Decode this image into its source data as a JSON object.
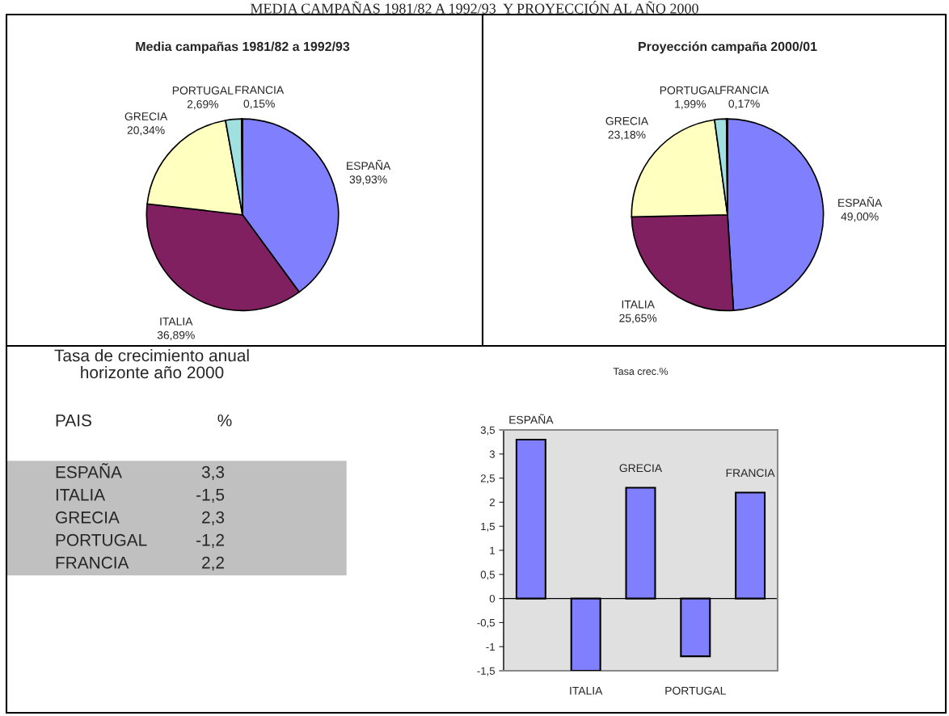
{
  "chart_data": [
    {
      "type": "pie",
      "title": "Media campañas 1981/82 a 1992/93",
      "annotations": [
        "MEDIA CAMPAÑAS 1981/82 A 1992/93  Y PROYECCIÓN AL AÑO 2000"
      ],
      "categories": [
        "ESPAÑA",
        "ITALIA",
        "GRECIA",
        "PORTUGAL",
        "FRANCIA"
      ],
      "values": [
        39.93,
        36.89,
        20.34,
        2.69,
        0.15
      ],
      "value_labels": [
        "39,93%",
        "36,89%",
        "20,34%",
        "2,69%",
        "0,15%"
      ],
      "colors": [
        "#8080ff",
        "#802060",
        "#ffffc0",
        "#a0e0e0",
        "#404040"
      ]
    },
    {
      "type": "pie",
      "title": "Proyección campaña 2000/01",
      "categories": [
        "ESPAÑA",
        "ITALIA",
        "GRECIA",
        "PORTUGAL",
        "FRANCIA"
      ],
      "values": [
        49.0,
        25.65,
        23.18,
        1.99,
        0.17
      ],
      "value_labels": [
        "49,00%",
        "25,65%",
        "23,18%",
        "1,99%",
        "0,17%"
      ],
      "colors": [
        "#8080ff",
        "#802060",
        "#ffffc0",
        "#a0e0e0",
        "#404040"
      ]
    },
    {
      "type": "other",
      "title": "Tasa de crecimiento anual\nhorizonte año 2000",
      "xlabel": "PAIS",
      "ylabel": "%",
      "categories": [
        "ESPAÑA",
        "ITALIA",
        "GRECIA",
        "PORTUGAL",
        "FRANCIA"
      ],
      "value_labels": [
        "3,3",
        "-1,5",
        "2,3",
        "-1,2",
        "2,2"
      ]
    },
    {
      "type": "bar",
      "title": "Tasa crec.%",
      "categories": [
        "ESPAÑA",
        "ITALIA",
        "GRECIA",
        "PORTUGAL",
        "FRANCIA"
      ],
      "values": [
        3.3,
        -1.5,
        2.3,
        -1.2,
        2.2
      ],
      "color": "#8080ff",
      "ylim": [
        -1.5,
        3.5
      ],
      "yticks": [
        {
          "value": -1.5,
          "label": "-1,5"
        },
        {
          "value": -1,
          "label": "-1"
        },
        {
          "value": -0.5,
          "label": "-0,5"
        },
        0,
        {
          "value": 0.5,
          "label": "0,5"
        },
        1,
        {
          "value": 1.5,
          "label": "1,5"
        },
        2,
        {
          "value": 2.5,
          "label": "2,5"
        },
        3,
        {
          "value": 3.5,
          "label": "3,5"
        }
      ]
    }
  ]
}
